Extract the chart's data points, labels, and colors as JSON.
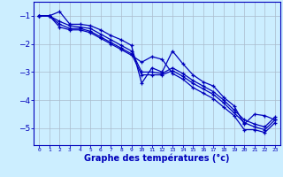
{
  "title": "",
  "xlabel": "Graphe des températures (°c)",
  "ylabel": "",
  "xlim": [
    -0.5,
    23.5
  ],
  "ylim": [
    -5.6,
    -0.5
  ],
  "yticks": [
    -5,
    -4,
    -3,
    -2,
    -1
  ],
  "xticks": [
    0,
    1,
    2,
    3,
    4,
    5,
    6,
    7,
    8,
    9,
    10,
    11,
    12,
    13,
    14,
    15,
    16,
    17,
    18,
    19,
    20,
    21,
    22,
    23
  ],
  "background_color": "#cceeff",
  "grid_color": "#aabbcc",
  "line_color": "#0000bb",
  "lines": [
    {
      "x": [
        0,
        1,
        2,
        3,
        4,
        5,
        6,
        7,
        8,
        9,
        10,
        11,
        12,
        13,
        14,
        15,
        16,
        17,
        18,
        19,
        20,
        21,
        22,
        23
      ],
      "y": [
        -1.0,
        -1.0,
        -0.85,
        -1.3,
        -1.3,
        -1.35,
        -1.5,
        -1.7,
        -1.85,
        -2.05,
        -3.4,
        -2.85,
        -3.0,
        -2.25,
        -2.7,
        -3.1,
        -3.35,
        -3.5,
        -3.9,
        -4.2,
        -4.85,
        -4.5,
        -4.55,
        -4.7
      ]
    },
    {
      "x": [
        0,
        1,
        2,
        3,
        4,
        5,
        6,
        7,
        8,
        9,
        10,
        11,
        12,
        13,
        14,
        15,
        16,
        17,
        18,
        19,
        20,
        21,
        22,
        23
      ],
      "y": [
        -1.0,
        -1.0,
        -1.2,
        -1.35,
        -1.4,
        -1.45,
        -1.65,
        -1.85,
        -2.05,
        -2.25,
        -3.0,
        -3.0,
        -3.05,
        -2.85,
        -3.05,
        -3.3,
        -3.5,
        -3.7,
        -4.0,
        -4.35,
        -4.7,
        -4.85,
        -4.95,
        -4.6
      ]
    },
    {
      "x": [
        0,
        1,
        2,
        3,
        4,
        5,
        6,
        7,
        8,
        9,
        10,
        11,
        12,
        13,
        14,
        15,
        16,
        17,
        18,
        19,
        20,
        21,
        22,
        23
      ],
      "y": [
        -1.0,
        -1.0,
        -1.3,
        -1.45,
        -1.45,
        -1.55,
        -1.75,
        -1.95,
        -2.15,
        -2.35,
        -3.1,
        -3.1,
        -3.1,
        -2.95,
        -3.15,
        -3.4,
        -3.6,
        -3.8,
        -4.1,
        -4.45,
        -4.8,
        -4.95,
        -5.05,
        -4.7
      ]
    },
    {
      "x": [
        0,
        1,
        2,
        3,
        4,
        5,
        6,
        7,
        8,
        9,
        10,
        11,
        12,
        13,
        14,
        15,
        16,
        17,
        18,
        19,
        20,
        21,
        22,
        23
      ],
      "y": [
        -1.0,
        -1.0,
        -1.4,
        -1.5,
        -1.5,
        -1.6,
        -1.8,
        -2.0,
        -2.2,
        -2.4,
        -2.65,
        -2.45,
        -2.55,
        -3.05,
        -3.25,
        -3.55,
        -3.75,
        -3.95,
        -4.25,
        -4.55,
        -5.05,
        -5.05,
        -5.15,
        -4.8
      ]
    }
  ]
}
